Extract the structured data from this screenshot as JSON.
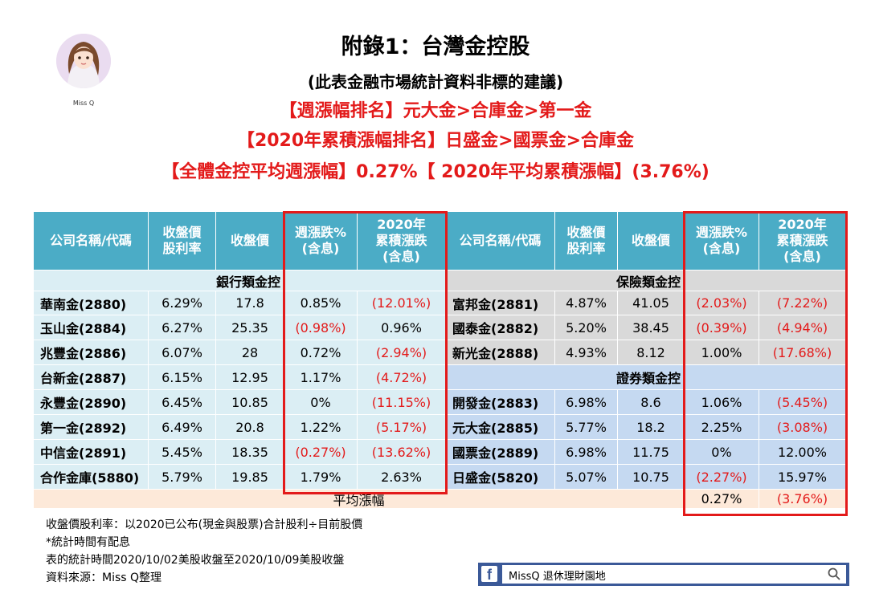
{
  "avatar": {
    "label": "Miss Q"
  },
  "header": {
    "title": "附錄1：台灣金控股",
    "subtitle": "(此表金融市場統計資料非標的建議)",
    "line1": "【週漲幅排名】元大金>合庫金>第一金",
    "line2": "【2020年累積漲幅排名】日盛金>國票金>合庫金",
    "line3": "【全體金控平均週漲幅】0.27%【 2020年平均累積漲幅】(3.76%)"
  },
  "columns": {
    "name": "公司名稱/代碼",
    "yield": "收盤價股利率",
    "price": "收盤價",
    "weekly": "週漲跌%(含息)",
    "ytd": "2020年累積漲跌(含息)"
  },
  "colors": {
    "header": "#4bacc6",
    "bank_row": "#dbeef4",
    "insure_row": "#d9d9d9",
    "sec_row": "#c5d9f1",
    "avg_row": "#fde9d9",
    "negative": "#e31a1a",
    "box": "#e31a1a"
  },
  "left": {
    "section": "銀行類金控",
    "rows": [
      {
        "name": "華南金(2880)",
        "yield": "6.29%",
        "price": "17.8",
        "weekly": "0.85%",
        "ytd": "(12.01%)"
      },
      {
        "name": "玉山金(2884)",
        "yield": "6.27%",
        "price": "25.35",
        "weekly": "(0.98%)",
        "ytd": "0.96%"
      },
      {
        "name": "兆豐金(2886)",
        "yield": "6.07%",
        "price": "28",
        "weekly": "0.72%",
        "ytd": "(2.94%)"
      },
      {
        "name": "台新金(2887)",
        "yield": "6.15%",
        "price": "12.95",
        "weekly": "1.17%",
        "ytd": "(4.72%)"
      },
      {
        "name": "永豐金(2890)",
        "yield": "6.45%",
        "price": "10.85",
        "weekly": "0%",
        "ytd": "(11.15%)"
      },
      {
        "name": "第一金(2892)",
        "yield": "6.49%",
        "price": "20.8",
        "weekly": "1.22%",
        "ytd": "(5.17%)"
      },
      {
        "name": "中信金(2891)",
        "yield": "5.45%",
        "price": "18.35",
        "weekly": "(0.27%)",
        "ytd": "(13.62%)"
      },
      {
        "name": "合作金庫(5880)",
        "yield": "5.79%",
        "price": "19.85",
        "weekly": "1.79%",
        "ytd": "2.63%"
      }
    ]
  },
  "right": {
    "section_insurance": "保險類金控",
    "insurance": [
      {
        "name": "富邦金(2881)",
        "yield": "4.87%",
        "price": "41.05",
        "weekly": "(2.03%)",
        "ytd": "(7.22%)"
      },
      {
        "name": "國泰金(2882)",
        "yield": "5.20%",
        "price": "38.45",
        "weekly": "(0.39%)",
        "ytd": "(4.94%)"
      },
      {
        "name": "新光金(2888)",
        "yield": "4.93%",
        "price": "8.12",
        "weekly": "1.00%",
        "ytd": "(17.68%)"
      }
    ],
    "section_securities": "證券類金控",
    "securities": [
      {
        "name": "開發金(2883)",
        "yield": "6.98%",
        "price": "8.6",
        "weekly": "1.06%",
        "ytd": "(5.45%)"
      },
      {
        "name": "元大金(2885)",
        "yield": "5.77%",
        "price": "18.2",
        "weekly": "2.25%",
        "ytd": "(3.08%)"
      },
      {
        "name": "國票金(2889)",
        "yield": "6.98%",
        "price": "11.75",
        "weekly": "0%",
        "ytd": "12.00%"
      },
      {
        "name": "日盛金(5820)",
        "yield": "5.07%",
        "price": "10.75",
        "weekly": "(2.27%)",
        "ytd": "15.97%"
      }
    ]
  },
  "average": {
    "label": "平均漲幅",
    "weekly": "0.27%",
    "ytd": "(3.76%)"
  },
  "notes": [
    "收盤價股利率：以2020已公布(現金與股票)合計股利÷目前股價",
    "*統計時間有配息",
    "表的統計時間2020/10/02美股收盤至2020/10/09美股收盤",
    "資料來源：Miss Q整理"
  ],
  "fb": {
    "page_name": "MissQ 退休理財園地",
    "logo": "f",
    "search_icon": "search-icon"
  }
}
